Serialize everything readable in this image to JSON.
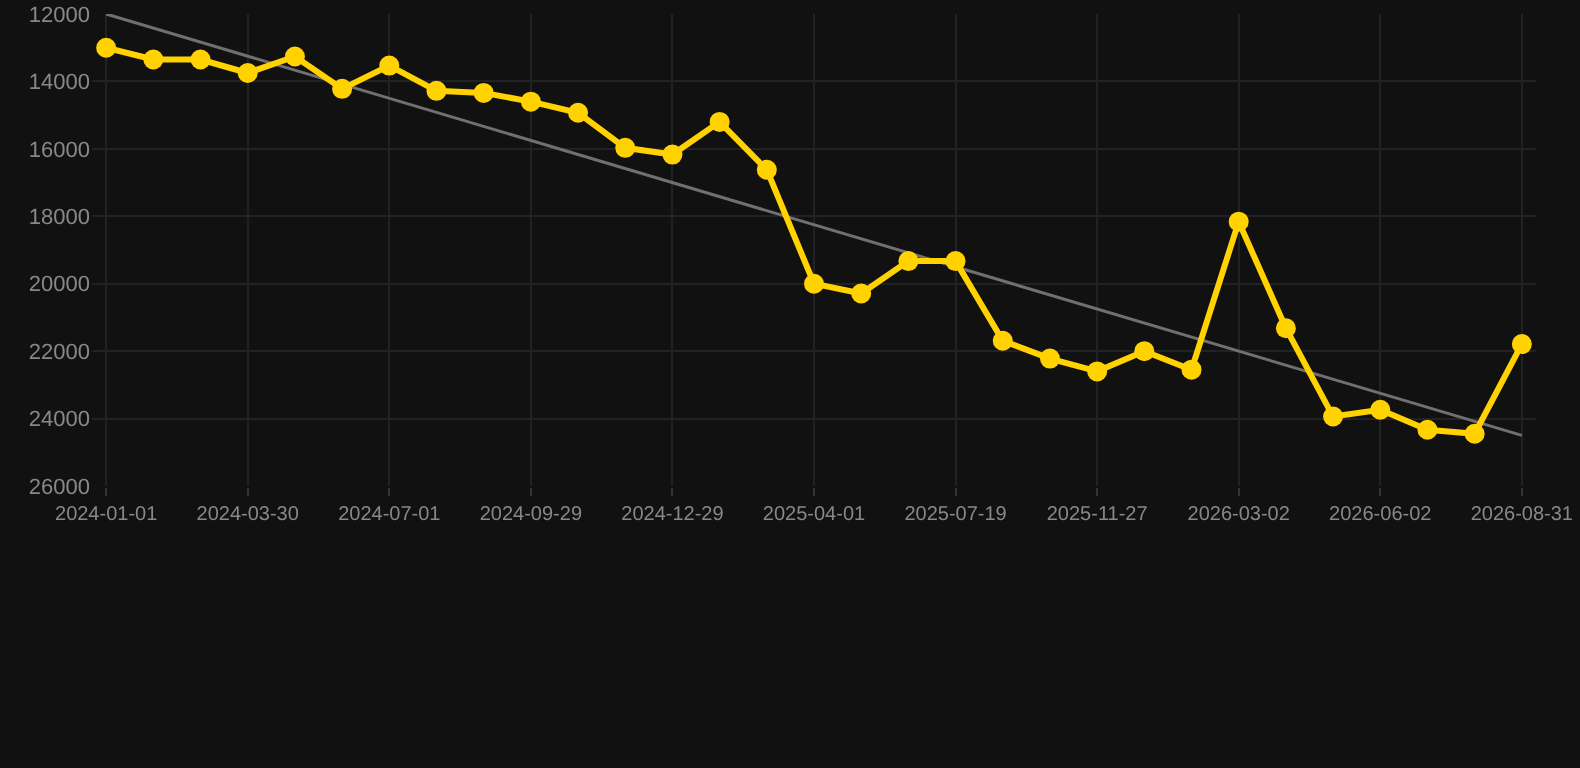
{
  "chart_data": {
    "type": "line",
    "categories": [
      "2024-01-01",
      null,
      null,
      "2024-03-30",
      null,
      null,
      "2024-07-01",
      null,
      null,
      "2024-09-29",
      null,
      null,
      "2024-12-29",
      null,
      null,
      "2025-04-01",
      null,
      null,
      "2025-07-19",
      null,
      null,
      "2025-11-27",
      null,
      null,
      "2026-03-02",
      null,
      null,
      "2026-06-02",
      null,
      null,
      "2026-08-31"
    ],
    "series": [
      {
        "color": "#ffd200",
        "marker": "circle",
        "values": [
          13000,
          13350,
          13350,
          13750,
          13260,
          14220,
          13530,
          14280,
          14340,
          14600,
          14930,
          15970,
          16170,
          15200,
          16620,
          20000,
          20290,
          19330,
          19330,
          21690,
          22220,
          22600,
          22000,
          22550,
          18160,
          21320,
          23940,
          23740,
          24330,
          24450,
          21790
        ]
      },
      {
        "type": "line",
        "color": "#707070",
        "marker": "none",
        "values": [
          12000,
          null,
          null,
          null,
          null,
          null,
          null,
          null,
          null,
          null,
          null,
          null,
          null,
          null,
          null,
          null,
          null,
          null,
          null,
          null,
          null,
          null,
          null,
          null,
          null,
          null,
          null,
          null,
          null,
          null,
          24500
        ]
      }
    ],
    "ylim": [
      26000,
      12000
    ],
    "yticks": [
      12000,
      14000,
      16000,
      18000,
      20000,
      22000,
      24000,
      26000
    ],
    "grid": true
  }
}
